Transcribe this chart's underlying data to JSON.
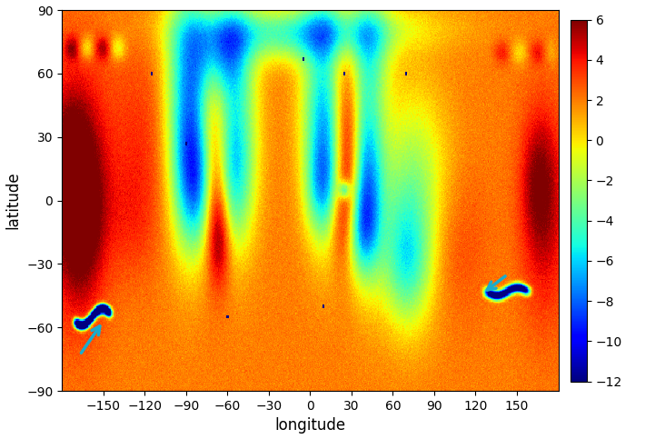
{
  "title": "",
  "xlabel": "longitude",
  "ylabel": "latitude",
  "xlim": [
    -180,
    180
  ],
  "ylim": [
    -90,
    90
  ],
  "xticks": [
    -150,
    -120,
    -90,
    -60,
    -30,
    0,
    30,
    60,
    90,
    120,
    150
  ],
  "yticks": [
    -90,
    -60,
    -30,
    0,
    30,
    60,
    90
  ],
  "vmin": -12,
  "vmax": 6,
  "colorbar_ticks": [
    6,
    4,
    2,
    0,
    -2,
    -4,
    -6,
    -8,
    -10,
    -12
  ],
  "cmap": "jet",
  "arrow_color": "#1AACCC",
  "seed": 42,
  "background_color": "#ffffff"
}
